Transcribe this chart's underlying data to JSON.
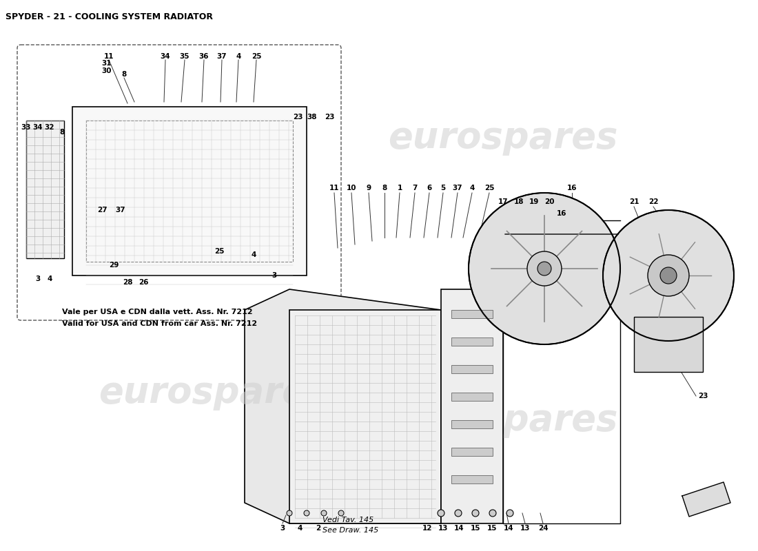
{
  "title": "SPYDER - 21 - COOLING SYSTEM RADIATOR",
  "title_fontsize": 9,
  "bg_color": "#ffffff",
  "line_color": "#000000",
  "watermark_color": "#d0d0d0",
  "watermark_text": "eurospares",
  "note_text1": "Vale per USA e CDN dalla vett. Ass. Nr. 7212",
  "note_text2": "Valid for USA and CDN from car Ass. Nr. 7212",
  "note2_text1": "Vedi Tav. 145",
  "note2_text2": "See Draw. 145",
  "inset_labels": [
    "11",
    "31",
    "30",
    "8",
    "33",
    "34",
    "32",
    "34",
    "35",
    "36",
    "37",
    "4",
    "25",
    "27",
    "37",
    "29",
    "28",
    "26",
    "25",
    "4",
    "3",
    "3",
    "4",
    "23",
    "38",
    "23"
  ],
  "main_labels": [
    "11",
    "10",
    "9",
    "8",
    "1",
    "7",
    "6",
    "5",
    "37",
    "4",
    "25",
    "16",
    "17",
    "18",
    "19",
    "20",
    "21",
    "22",
    "23",
    "12",
    "13",
    "14",
    "15",
    "15",
    "14",
    "13",
    "24",
    "3",
    "4",
    "2"
  ]
}
